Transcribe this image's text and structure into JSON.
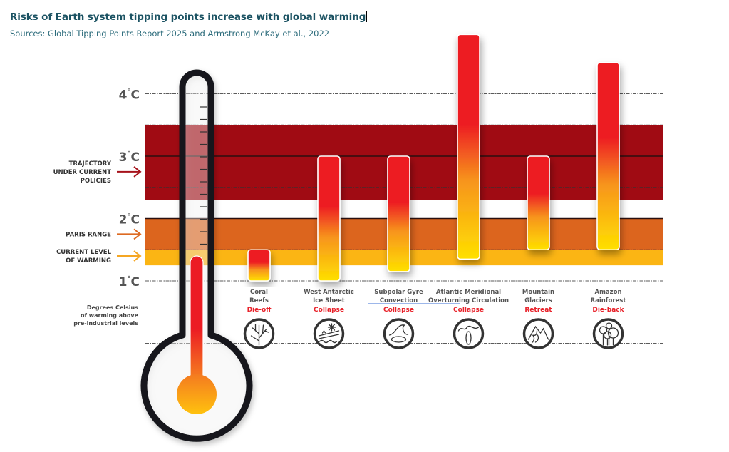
{
  "header": {
    "title": "Risks of Earth system tipping points increase with global warming",
    "subtitle": "Sources: Global Tipping Points Report 2025 and Armstrong McKay et al., 2022"
  },
  "chart_data": {
    "type": "bar",
    "title": "Risks of Earth system tipping points increase with global warming",
    "subtitle": "Sources: Global Tipping Points Report 2025 and Armstrong McKay et al., 2022",
    "ylabel": "Degrees Celsius of warming above pre-industrial levels",
    "ylim": [
      0,
      5
    ],
    "yticks": [
      {
        "value": 4,
        "label": "4",
        "unit": "°C"
      },
      {
        "value": 3,
        "label": "3",
        "unit": "°C"
      },
      {
        "value": 2,
        "label": "2",
        "unit": "°C"
      },
      {
        "value": 1,
        "label": "1",
        "unit": "°C"
      }
    ],
    "gridlines_dashed": [
      4.0,
      3.5,
      2.5,
      1.5,
      1.0,
      0.0
    ],
    "gridlines_solid": [
      3.0,
      2.0
    ],
    "bands": [
      {
        "name": "TRAJECTORY UNDER CURRENT POLICIES",
        "lines": [
          "TRAJECTORY",
          "UNDER CURRENT",
          "POLICIES"
        ],
        "from": 2.3,
        "to": 3.5,
        "color": "#a00b13",
        "arrow_color": "#a6121b",
        "arrow_at": 2.75
      },
      {
        "name": "PARIS RANGE",
        "lines": [
          "PARIS RANGE"
        ],
        "from": 1.5,
        "to": 2.0,
        "color": "#dc651e",
        "arrow_color": "#dd6a22",
        "arrow_at": 1.75
      },
      {
        "name": "CURRENT LEVEL OF WARMING",
        "lines": [
          "CURRENT LEVEL",
          "OF WARMING"
        ],
        "from": 1.25,
        "to": 1.5,
        "color": "#fbb514",
        "arrow_color": "#f5a623",
        "arrow_at": 1.4
      }
    ],
    "thermometer": {
      "current_warming": 1.4,
      "mercury_color": "#ec1c24",
      "bulb_color": "#f7931e"
    },
    "series": [
      {
        "name": "Tipping point warming range",
        "type": "range-bar"
      }
    ],
    "categories": [
      {
        "name_lines": [
          "Coral",
          "Reefs"
        ],
        "impact": "Die-off",
        "min": 1.0,
        "max": 1.5,
        "icon": "coral-icon"
      },
      {
        "name_lines": [
          "West Antarctic",
          "Ice Sheet"
        ],
        "impact": "Collapse",
        "min": 1.0,
        "max": 3.0,
        "icon": "ice-sheet-icon"
      },
      {
        "name_lines": [
          "Subpolar Gyre",
          "Convection"
        ],
        "impact": "Collapse",
        "min": 1.15,
        "max": 3.0,
        "icon": "gyre-wave-icon"
      },
      {
        "name_lines": [
          "Atlantic Meridional",
          "Overturning Circulation"
        ],
        "impact": "Collapse",
        "min": 1.35,
        "max": 4.95,
        "icon": "ocean-circulation-icon"
      },
      {
        "name_lines": [
          "Mountain",
          "Glaciers"
        ],
        "impact": "Retreat",
        "min": 1.5,
        "max": 3.0,
        "icon": "mountain-icon"
      },
      {
        "name_lines": [
          "Amazon",
          "Rainforest"
        ],
        "impact": "Die-back",
        "min": 1.5,
        "max": 4.5,
        "icon": "forest-icon"
      }
    ],
    "axis_note_lines": [
      "Degrees Celsius",
      "of warming above",
      "pre-industrial levels"
    ],
    "colors": {
      "bar_top": "#ed1c24",
      "bar_bottom": "#ffdd00",
      "spellcheck_underline": "#3b6fd4"
    },
    "legend": "left"
  }
}
